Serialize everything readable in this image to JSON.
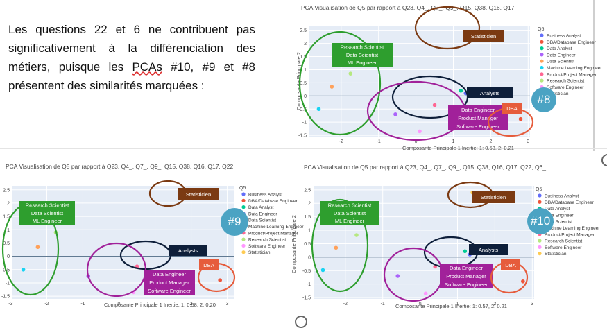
{
  "paragraph": {
    "p1": "Les questions 22 et 6 ne contribuent pas significativement à la différenciation des métiers, puisque les ",
    "pcas": "PCAs",
    "p2": " #10, #9 et #8 présentent des similarités marquées :"
  },
  "legend_title": "Q5",
  "legend_items": [
    "Business Analyst",
    "DBA/Database Engineer",
    "Data Analyst",
    "Data Engineer",
    "Data Scientist",
    "Machine Learning Engineer",
    "Product/Project Manager",
    "Research Scientist",
    "Software Engineer",
    "Statistician"
  ],
  "colors": {
    "Business Analyst": "#636efa",
    "DBA/Database Engineer": "#ef553b",
    "Data Analyst": "#00cc96",
    "Data Engineer": "#ab63fa",
    "Data Scientist": "#ffa15a",
    "Machine Learning Engineer": "#19d3f3",
    "Product/Project Manager": "#ff6692",
    "Research Scientist": "#b6e880",
    "Software Engineer": "#ff97ff",
    "Statistician": "#fecb52",
    "statistician_box": "#7b3a12",
    "ds_box": "#2e9e2e",
    "analysts_box": "#0e1f3a",
    "de_box": "#a1219a",
    "dba_box": "#e65c3c",
    "badge": "#4ba3c3"
  },
  "annotations": {
    "statisticien": "Statisticien",
    "research": [
      "Research Scientist",
      "Data Scientist",
      "ML Engineer"
    ],
    "analysts": "Analysts",
    "engineers": [
      "Data Engineer",
      "Product Manager",
      "Software Engineer"
    ],
    "dba": "DBA"
  },
  "chart_data": [
    {
      "id": "pca8",
      "badge": "#8",
      "type": "scatter",
      "title": "PCA Visualisation de Q5 par rapport à Q23, Q4_, Q7_, Q9_, Q15, Q38, Q16, Q17",
      "xlabel": "Composante Principale 1 Inertie: 1: 0.58, 2: 0.21",
      "ylabel": "Composante Principale 2",
      "xlim": [
        -2.85,
        3.05
      ],
      "ylim": [
        -1.55,
        2.65
      ],
      "xticks": [
        -2,
        -1,
        0,
        1,
        2,
        3
      ],
      "yticks": [
        -1.5,
        -1,
        -0.5,
        0,
        0.5,
        1,
        1.5,
        2,
        2.5
      ],
      "points": [
        {
          "cat": "Business Analyst",
          "x": 1.33,
          "y": 0.1
        },
        {
          "cat": "DBA/Database Engineer",
          "x": 2.8,
          "y": -0.88
        },
        {
          "cat": "Data Analyst",
          "x": 1.2,
          "y": 0.2
        },
        {
          "cat": "Data Engineer",
          "x": -0.55,
          "y": -0.7
        },
        {
          "cat": "Data Scientist",
          "x": -2.25,
          "y": 0.35
        },
        {
          "cat": "Machine Learning Engineer",
          "x": -2.6,
          "y": -0.5
        },
        {
          "cat": "Product/Project Manager",
          "x": 0.5,
          "y": -0.35
        },
        {
          "cat": "Research Scientist",
          "x": -1.75,
          "y": 0.85
        },
        {
          "cat": "Software Engineer",
          "x": 0.1,
          "y": -1.35
        },
        {
          "cat": "Statistician",
          "x": 1.45,
          "y": 2.4
        }
      ]
    },
    {
      "id": "pca9",
      "badge": "#9",
      "type": "scatter",
      "title": "PCA Visualisation de Q5 par rapport à Q23, Q4_, Q7_, Q9_, Q15, Q38, Q16, Q17, Q22",
      "xlabel": "Composante Principale 1 Inertie: 1: 0.58, 2: 0.20",
      "ylabel": "",
      "xlim": [
        -2.95,
        3.2
      ],
      "ylim": [
        -1.6,
        2.65
      ],
      "xticks": [
        -3,
        -2,
        -1,
        0,
        1,
        2,
        3
      ],
      "yticks": [
        -1.5,
        -1,
        -0.5,
        0,
        0.5,
        1,
        1.5,
        2,
        2.5
      ],
      "points": [
        {
          "cat": "Business Analyst",
          "x": 1.7,
          "y": 0.08
        },
        {
          "cat": "DBA/Database Engineer",
          "x": 2.8,
          "y": -0.9
        },
        {
          "cat": "Data Analyst",
          "x": 1.55,
          "y": 0.2
        },
        {
          "cat": "Data Engineer",
          "x": -0.85,
          "y": -0.75
        },
        {
          "cat": "Data Scientist",
          "x": -2.25,
          "y": 0.35
        },
        {
          "cat": "Machine Learning Engineer",
          "x": -2.65,
          "y": -0.5
        },
        {
          "cat": "Product/Project Manager",
          "x": 0.5,
          "y": -0.38
        },
        {
          "cat": "Research Scientist",
          "x": -1.75,
          "y": 0.9
        },
        {
          "cat": "Software Engineer",
          "x": 0.4,
          "y": -1.35
        },
        {
          "cat": "Statistician",
          "x": 1.75,
          "y": 2.45
        }
      ]
    },
    {
      "id": "pca10",
      "badge": "#10",
      "type": "scatter",
      "title": "PCA Visualisation de Q5 par rapport à Q23, Q4_, Q7_, Q9_, Q15, Q38, Q16, Q17, Q22, Q6_",
      "xlabel": "Composante Principale 1 Inertie: 1: 0.57, 2: 0.21",
      "ylabel": "Composante Principale 2",
      "xlim": [
        -2.85,
        3.05
      ],
      "ylim": [
        -1.55,
        2.65
      ],
      "xticks": [
        -2,
        -1,
        0,
        1,
        2,
        3
      ],
      "yticks": [
        -1.5,
        -1,
        -0.5,
        0,
        0.5,
        1,
        1.5,
        2,
        2.5
      ],
      "points": [
        {
          "cat": "Business Analyst",
          "x": 1.33,
          "y": 0.1
        },
        {
          "cat": "DBA/Database Engineer",
          "x": 2.75,
          "y": -0.9
        },
        {
          "cat": "Data Analyst",
          "x": 1.2,
          "y": 0.22
        },
        {
          "cat": "Data Engineer",
          "x": -0.6,
          "y": -0.7
        },
        {
          "cat": "Data Scientist",
          "x": -2.25,
          "y": 0.35
        },
        {
          "cat": "Machine Learning Engineer",
          "x": -2.6,
          "y": -0.48
        },
        {
          "cat": "Product/Project Manager",
          "x": 0.4,
          "y": -0.35
        },
        {
          "cat": "Research Scientist",
          "x": -1.7,
          "y": 0.82
        },
        {
          "cat": "Software Engineer",
          "x": 0.15,
          "y": -1.35
        },
        {
          "cat": "Statistician",
          "x": 1.4,
          "y": 2.4
        }
      ]
    }
  ]
}
